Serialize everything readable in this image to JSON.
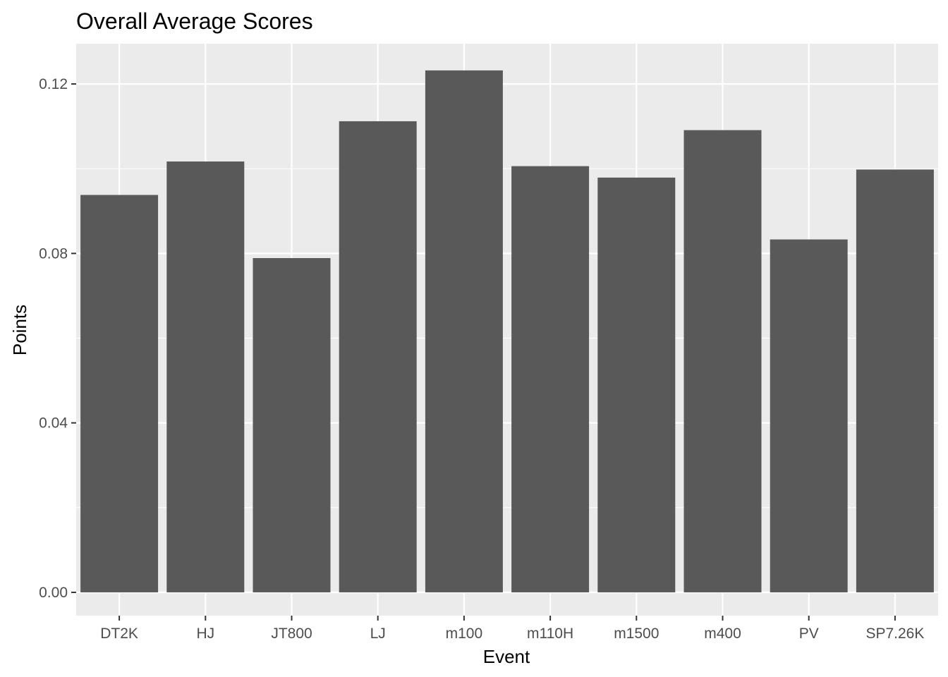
{
  "chart_data": {
    "type": "bar",
    "title": "Overall Average Scores",
    "xlabel": "Event",
    "ylabel": "Points",
    "categories": [
      "DT2K",
      "HJ",
      "JT800",
      "LJ",
      "m100",
      "m110H",
      "m1500",
      "m400",
      "PV",
      "SP7.26K"
    ],
    "values": [
      0.0938,
      0.1017,
      0.0789,
      0.1112,
      0.1232,
      0.1006,
      0.0979,
      0.1091,
      0.0833,
      0.0998
    ],
    "ylim": [
      -0.0055,
      0.1295
    ],
    "yticks": [
      0.0,
      0.04,
      0.08,
      0.12
    ],
    "ytick_labels": [
      "0.00",
      "0.04",
      "0.08",
      "0.12"
    ],
    "grid": true,
    "legend": "none",
    "colors": {
      "panel_background": "#ebebeb",
      "grid": "#ffffff",
      "bar": "#595959",
      "tick_text": "#4d4d4d",
      "tick_mark": "#333333"
    }
  }
}
